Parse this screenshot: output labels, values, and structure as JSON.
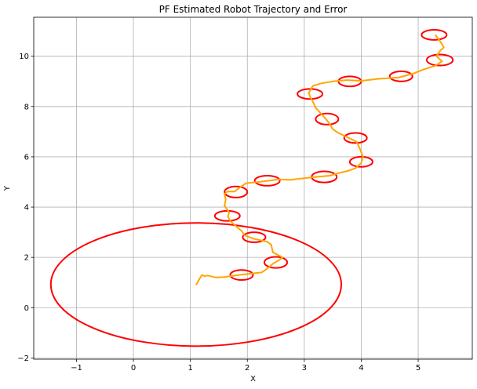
{
  "chart_data": {
    "type": "line",
    "title": "PF Estimated Robot Trajectory and Error",
    "xlabel": "X",
    "ylabel": "Y",
    "xlim": [
      -1.75,
      5.95
    ],
    "ylim": [
      -2.05,
      11.55
    ],
    "xticks": [
      -1,
      0,
      1,
      2,
      3,
      4,
      5
    ],
    "yticks": [
      -2,
      0,
      2,
      4,
      6,
      8,
      10
    ],
    "grid": true,
    "series": [
      {
        "type": "line",
        "color": "#FFA500",
        "x": [
          1.1,
          1.15,
          1.2,
          1.25,
          1.3,
          1.45,
          1.6,
          1.85,
          2.05,
          2.25,
          2.35,
          2.45,
          2.55,
          2.62,
          2.58,
          2.45,
          2.42,
          2.35,
          2.1,
          1.95,
          1.9,
          1.82,
          1.7,
          1.66,
          1.68,
          1.6,
          1.62,
          1.6,
          1.65,
          1.78,
          1.88,
          1.98,
          2.2,
          2.55,
          2.75,
          3.0,
          3.2,
          3.45,
          3.6,
          3.78,
          3.9,
          4.0,
          4.03,
          3.98,
          3.92,
          3.78,
          3.6,
          3.5,
          3.45,
          3.38,
          3.3,
          3.2,
          3.15,
          3.1,
          3.08,
          3.15,
          3.3,
          3.5,
          3.75,
          4.0,
          4.3,
          4.65,
          4.9,
          5.1,
          5.3,
          5.42,
          5.32,
          5.38,
          5.45,
          5.4,
          5.3
        ],
        "y": [
          0.9,
          1.1,
          1.3,
          1.25,
          1.28,
          1.2,
          1.22,
          1.3,
          1.35,
          1.4,
          1.55,
          1.75,
          1.88,
          2.0,
          2.05,
          2.2,
          2.5,
          2.62,
          2.75,
          2.88,
          3.05,
          3.2,
          3.45,
          3.62,
          3.8,
          4.05,
          4.3,
          4.52,
          4.62,
          4.62,
          4.8,
          4.95,
          5.0,
          5.1,
          5.08,
          5.15,
          5.2,
          5.25,
          5.35,
          5.45,
          5.55,
          5.75,
          6.0,
          6.3,
          6.6,
          6.75,
          6.95,
          7.1,
          7.3,
          7.5,
          7.7,
          7.95,
          8.2,
          8.4,
          8.55,
          8.82,
          8.92,
          9.0,
          9.05,
          9.02,
          9.1,
          9.15,
          9.3,
          9.48,
          9.62,
          9.8,
          10.0,
          10.2,
          10.35,
          10.55,
          10.85
        ]
      }
    ],
    "error_ellipses": {
      "color": "#FF0000",
      "items": [
        {
          "cx": 1.9,
          "cy": 1.3,
          "rx": 0.2,
          "ry": 0.2
        },
        {
          "cx": 2.5,
          "cy": 1.8,
          "rx": 0.2,
          "ry": 0.22
        },
        {
          "cx": 2.12,
          "cy": 2.8,
          "rx": 0.2,
          "ry": 0.2
        },
        {
          "cx": 1.65,
          "cy": 3.65,
          "rx": 0.22,
          "ry": 0.2
        },
        {
          "cx": 1.8,
          "cy": 4.6,
          "rx": 0.2,
          "ry": 0.22
        },
        {
          "cx": 2.35,
          "cy": 5.05,
          "rx": 0.22,
          "ry": 0.2
        },
        {
          "cx": 3.35,
          "cy": 5.2,
          "rx": 0.22,
          "ry": 0.22
        },
        {
          "cx": 4.0,
          "cy": 5.8,
          "rx": 0.2,
          "ry": 0.2
        },
        {
          "cx": 3.9,
          "cy": 6.75,
          "rx": 0.2,
          "ry": 0.2
        },
        {
          "cx": 3.4,
          "cy": 7.5,
          "rx": 0.2,
          "ry": 0.22
        },
        {
          "cx": 3.1,
          "cy": 8.5,
          "rx": 0.22,
          "ry": 0.2
        },
        {
          "cx": 3.8,
          "cy": 9.0,
          "rx": 0.2,
          "ry": 0.2
        },
        {
          "cx": 4.7,
          "cy": 9.2,
          "rx": 0.2,
          "ry": 0.2
        },
        {
          "cx": 5.38,
          "cy": 9.85,
          "rx": 0.23,
          "ry": 0.22
        },
        {
          "cx": 5.28,
          "cy": 10.85,
          "rx": 0.22,
          "ry": 0.2
        },
        {
          "cx": 1.1,
          "cy": 0.92,
          "rx": 2.55,
          "ry": 2.45
        }
      ]
    }
  }
}
